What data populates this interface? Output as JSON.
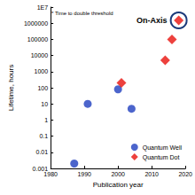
{
  "chart_data": {
    "type": "scatter",
    "x_label": "Publication year",
    "y_label": "Lifetime, hours",
    "log": "y",
    "grid": false,
    "legend": "bottom-right",
    "xlim": [
      1980,
      2020
    ],
    "xticks": [
      1980,
      1990,
      2000,
      2010,
      2020
    ],
    "ylim": [
      0.001,
      10000000
    ],
    "yticks": [
      0.001,
      0.01,
      0.1,
      1,
      10,
      100,
      1000,
      10000,
      100000,
      1000000,
      {
        "value": 10000000,
        "label": "1E7"
      }
    ],
    "series": [
      {
        "name": "Quantum Well",
        "color": "#1f3fbf",
        "marker": "circle",
        "x": [
          1987,
          1991,
          2000,
          2004
        ],
        "values": [
          0.002,
          10,
          80,
          5
        ]
      },
      {
        "name": "Quantum Dot",
        "color": "#e8120c",
        "marker": "diamond",
        "x": [
          2001,
          2014,
          2016,
          2018
        ],
        "values": [
          200,
          5000,
          100000,
          1500000
        ]
      }
    ],
    "annotations": [
      {
        "text": "* Time to double threshold"
      },
      {
        "text": "On-Axis",
        "x": 2018,
        "y": 1500000
      }
    ]
  }
}
